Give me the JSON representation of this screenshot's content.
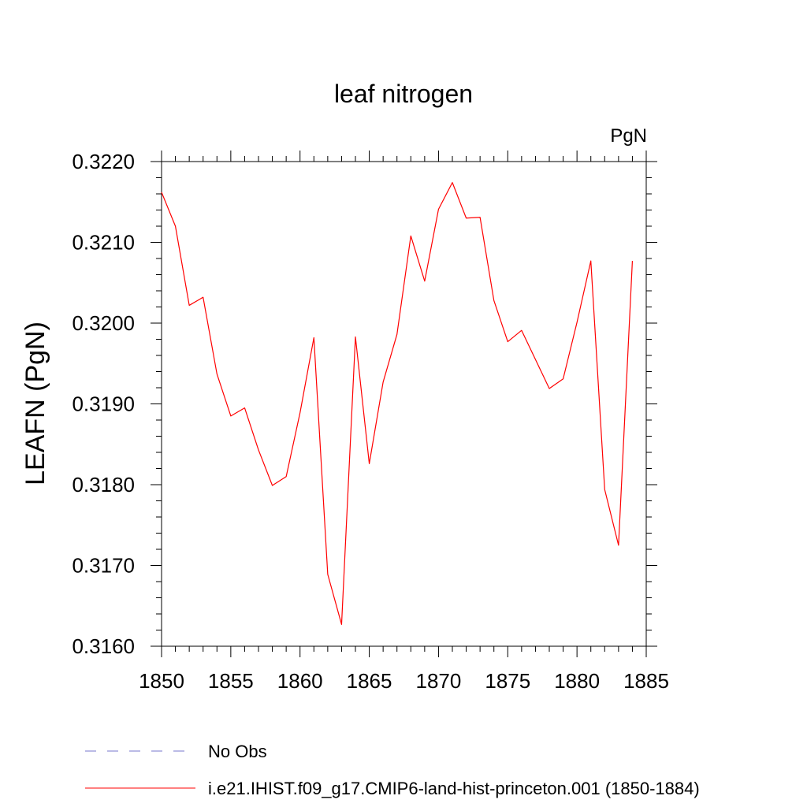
{
  "chart_data": {
    "type": "line",
    "title": "leaf nitrogen",
    "units": "PgN",
    "ylabel": "LEAFN  (PgN)",
    "xlabel": "",
    "xlim": [
      1850,
      1885
    ],
    "ylim": [
      0.316,
      0.322
    ],
    "x_ticks": [
      "1850",
      "1855",
      "1860",
      "1865",
      "1870",
      "1875",
      "1880",
      "1885"
    ],
    "y_ticks": [
      "0.3160",
      "0.3170",
      "0.3180",
      "0.3190",
      "0.3200",
      "0.3210",
      "0.3220"
    ],
    "grid": false,
    "legend_position": "bottom",
    "series": [
      {
        "name": "i.e21.IHIST.f09_g17.CMIP6-land-hist-princeton.001 (1850-1884)",
        "color": "#ff0000",
        "style": "solid",
        "x": [
          1850,
          1851,
          1852,
          1853,
          1854,
          1855,
          1856,
          1857,
          1858,
          1859,
          1860,
          1861,
          1862,
          1863,
          1864,
          1865,
          1866,
          1867,
          1868,
          1869,
          1870,
          1871,
          1872,
          1873,
          1874,
          1875,
          1876,
          1877,
          1878,
          1879,
          1880,
          1881,
          1882,
          1883,
          1884
        ],
        "y": [
          0.32162,
          0.3212,
          0.32022,
          0.32032,
          0.31937,
          0.31885,
          0.31895,
          0.31843,
          0.31799,
          0.3181,
          0.31889,
          0.31982,
          0.31689,
          0.31627,
          0.31983,
          0.31826,
          0.31927,
          0.31986,
          0.32108,
          0.32052,
          0.32141,
          0.32174,
          0.3213,
          0.32131,
          0.32028,
          0.31977,
          0.31991,
          0.31955,
          0.31919,
          0.31931,
          0.32001,
          0.32077,
          0.31794,
          0.31725,
          0.32077
        ]
      }
    ],
    "legend": [
      {
        "label": "No Obs",
        "color": "#7777cc",
        "style": "dashed"
      },
      {
        "label": "i.e21.IHIST.f09_g17.CMIP6-land-hist-princeton.001 (1850-1884)",
        "color": "#ff0000",
        "style": "solid"
      }
    ]
  }
}
